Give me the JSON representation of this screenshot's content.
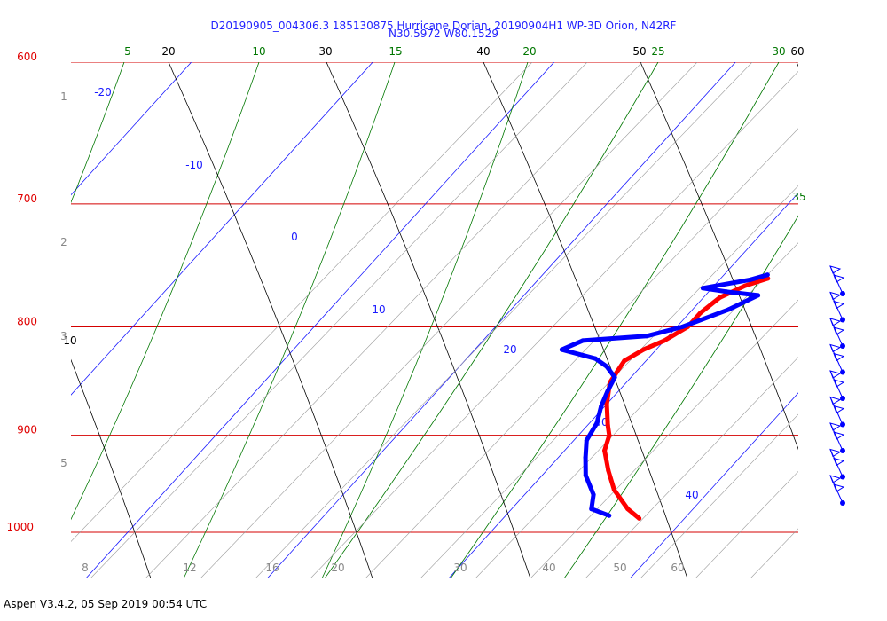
{
  "chart_data": {
    "type": "skew-t",
    "title": "D20190905_004306.3 185130875 Hurricane Dorian, 20190904H1 WP-3D Orion, N42RF",
    "subtitle": "N30.5972 W80.1529",
    "footer": "Aspen V3.4.2, 05 Sep 2019  00:54 UTC",
    "pressure_axis": {
      "unit": "hPa",
      "ticks": [
        600,
        700,
        800,
        900,
        1000
      ],
      "range": [
        600,
        1000
      ],
      "labels": [
        "600",
        "700",
        "800",
        "900",
        "1000"
      ]
    },
    "height_axis": {
      "unit": "km",
      "ticks": [
        1,
        2,
        3,
        5
      ],
      "labels": [
        "1",
        "2",
        "3",
        "5"
      ]
    },
    "temperature_isotherms": {
      "unit": "C",
      "values": [
        -20,
        -10,
        0,
        10,
        20,
        30,
        40
      ],
      "labels": [
        "-20",
        "-10",
        "0",
        "10",
        "20",
        "30",
        "40"
      ]
    },
    "dry_adiabats": {
      "values": [
        10,
        20,
        30,
        40,
        50,
        60
      ],
      "labels": [
        "10",
        "20",
        "30",
        "40",
        "50",
        "60"
      ]
    },
    "moist_adiabats": {
      "values": [
        5,
        10,
        15,
        20,
        25,
        30,
        35
      ],
      "labels": [
        "5",
        "10",
        "15",
        "20",
        "25",
        "30",
        "35"
      ]
    },
    "mixing_ratio": {
      "unit": "g/kg",
      "values": [
        8,
        12,
        16,
        20,
        30,
        40,
        50,
        60
      ],
      "labels": [
        "8",
        "12",
        "16",
        "20",
        "30",
        "40",
        "50",
        "60"
      ]
    },
    "series": [
      {
        "name": "Temperature",
        "color": "#ff0000",
        "points": [
          {
            "p": 759,
            "t": 22.6
          },
          {
            "p": 765,
            "t": 21.7
          },
          {
            "p": 775,
            "t": 20.9
          },
          {
            "p": 788,
            "t": 20.6
          },
          {
            "p": 800,
            "t": 20.6
          },
          {
            "p": 812,
            "t": 20.0
          },
          {
            "p": 820,
            "t": 19.3
          },
          {
            "p": 830,
            "t": 18.8
          },
          {
            "p": 850,
            "t": 19.1
          },
          {
            "p": 870,
            "t": 20.0
          },
          {
            "p": 890,
            "t": 21.1
          },
          {
            "p": 900,
            "t": 21.7
          },
          {
            "p": 915,
            "t": 22.2
          },
          {
            "p": 935,
            "t": 23.4
          },
          {
            "p": 955,
            "t": 24.7
          },
          {
            "p": 975,
            "t": 26.4
          },
          {
            "p": 985,
            "t": 27.5
          }
        ]
      },
      {
        "name": "Dewpoint",
        "color": "#0000ff",
        "points": [
          {
            "p": 756,
            "t": 22.4
          },
          {
            "p": 760,
            "t": 21.7
          },
          {
            "p": 767,
            "t": 19.5
          },
          {
            "p": 770,
            "t": 21.0
          },
          {
            "p": 773,
            "t": 22.9
          },
          {
            "p": 785,
            "t": 22.0
          },
          {
            "p": 800,
            "t": 20.3
          },
          {
            "p": 808,
            "t": 18.8
          },
          {
            "p": 812,
            "t": 15.5
          },
          {
            "p": 820,
            "t": 14.8
          },
          {
            "p": 828,
            "t": 17.1
          },
          {
            "p": 835,
            "t": 18.1
          },
          {
            "p": 845,
            "t": 19.1
          },
          {
            "p": 858,
            "t": 19.4
          },
          {
            "p": 872,
            "t": 19.8
          },
          {
            "p": 888,
            "t": 20.4
          },
          {
            "p": 905,
            "t": 20.7
          },
          {
            "p": 922,
            "t": 21.5
          },
          {
            "p": 940,
            "t": 22.4
          },
          {
            "p": 960,
            "t": 23.8
          },
          {
            "p": 975,
            "t": 24.4
          },
          {
            "p": 982,
            "t": 25.7
          }
        ]
      }
    ],
    "wind_barbs": {
      "count": 9,
      "side": "right"
    }
  }
}
